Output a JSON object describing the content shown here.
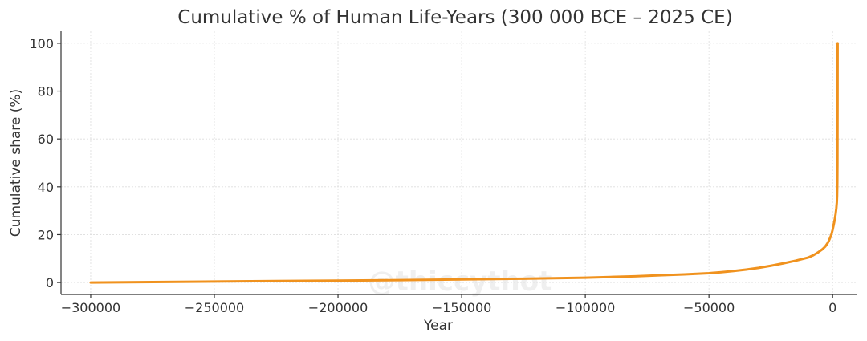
{
  "chart_data": {
    "type": "line",
    "title": "Cumulative % of Human Life-Years (300 000 BCE – 2025 CE)",
    "xlabel": "Year",
    "ylabel": "Cumulative share (%)",
    "xlim": [
      -312000,
      10000
    ],
    "ylim": [
      -5,
      105
    ],
    "xticks": [
      -300000,
      -250000,
      -200000,
      -150000,
      -100000,
      -50000,
      0
    ],
    "xtick_labels": [
      "−300000",
      "−250000",
      "−200000",
      "−150000",
      "−100000",
      "−50000",
      "0"
    ],
    "yticks": [
      0,
      20,
      40,
      60,
      80,
      100
    ],
    "ytick_labels": [
      "0",
      "20",
      "40",
      "60",
      "80",
      "100"
    ],
    "grid": true,
    "watermark": "@thiccythot",
    "series": [
      {
        "color": "#f0921e",
        "x": [
          -300000,
          -275000,
          -250000,
          -225000,
          -200000,
          -175000,
          -150000,
          -125000,
          -100000,
          -90000,
          -80000,
          -70000,
          -60000,
          -50000,
          -45000,
          -40000,
          -35000,
          -30000,
          -25000,
          -20000,
          -15000,
          -10000,
          -8000,
          -6000,
          -4000,
          -3000,
          -2000,
          -1500,
          -1000,
          -500,
          0,
          300,
          600,
          900,
          1200,
          1500,
          1700,
          1800,
          1900,
          1950,
          2000,
          2025
        ],
        "y": [
          0,
          0.2,
          0.4,
          0.6,
          0.8,
          1.0,
          1.3,
          1.6,
          2.0,
          2.3,
          2.6,
          3.0,
          3.4,
          3.9,
          4.3,
          4.8,
          5.4,
          6.1,
          7.0,
          8.0,
          9.1,
          10.4,
          11.3,
          12.5,
          14.0,
          15.0,
          16.5,
          17.5,
          18.7,
          20.0,
          22.0,
          23.5,
          25.0,
          26.6,
          28.5,
          31.0,
          33.5,
          36.0,
          42.0,
          50.0,
          75.0,
          100.0
        ]
      }
    ]
  }
}
